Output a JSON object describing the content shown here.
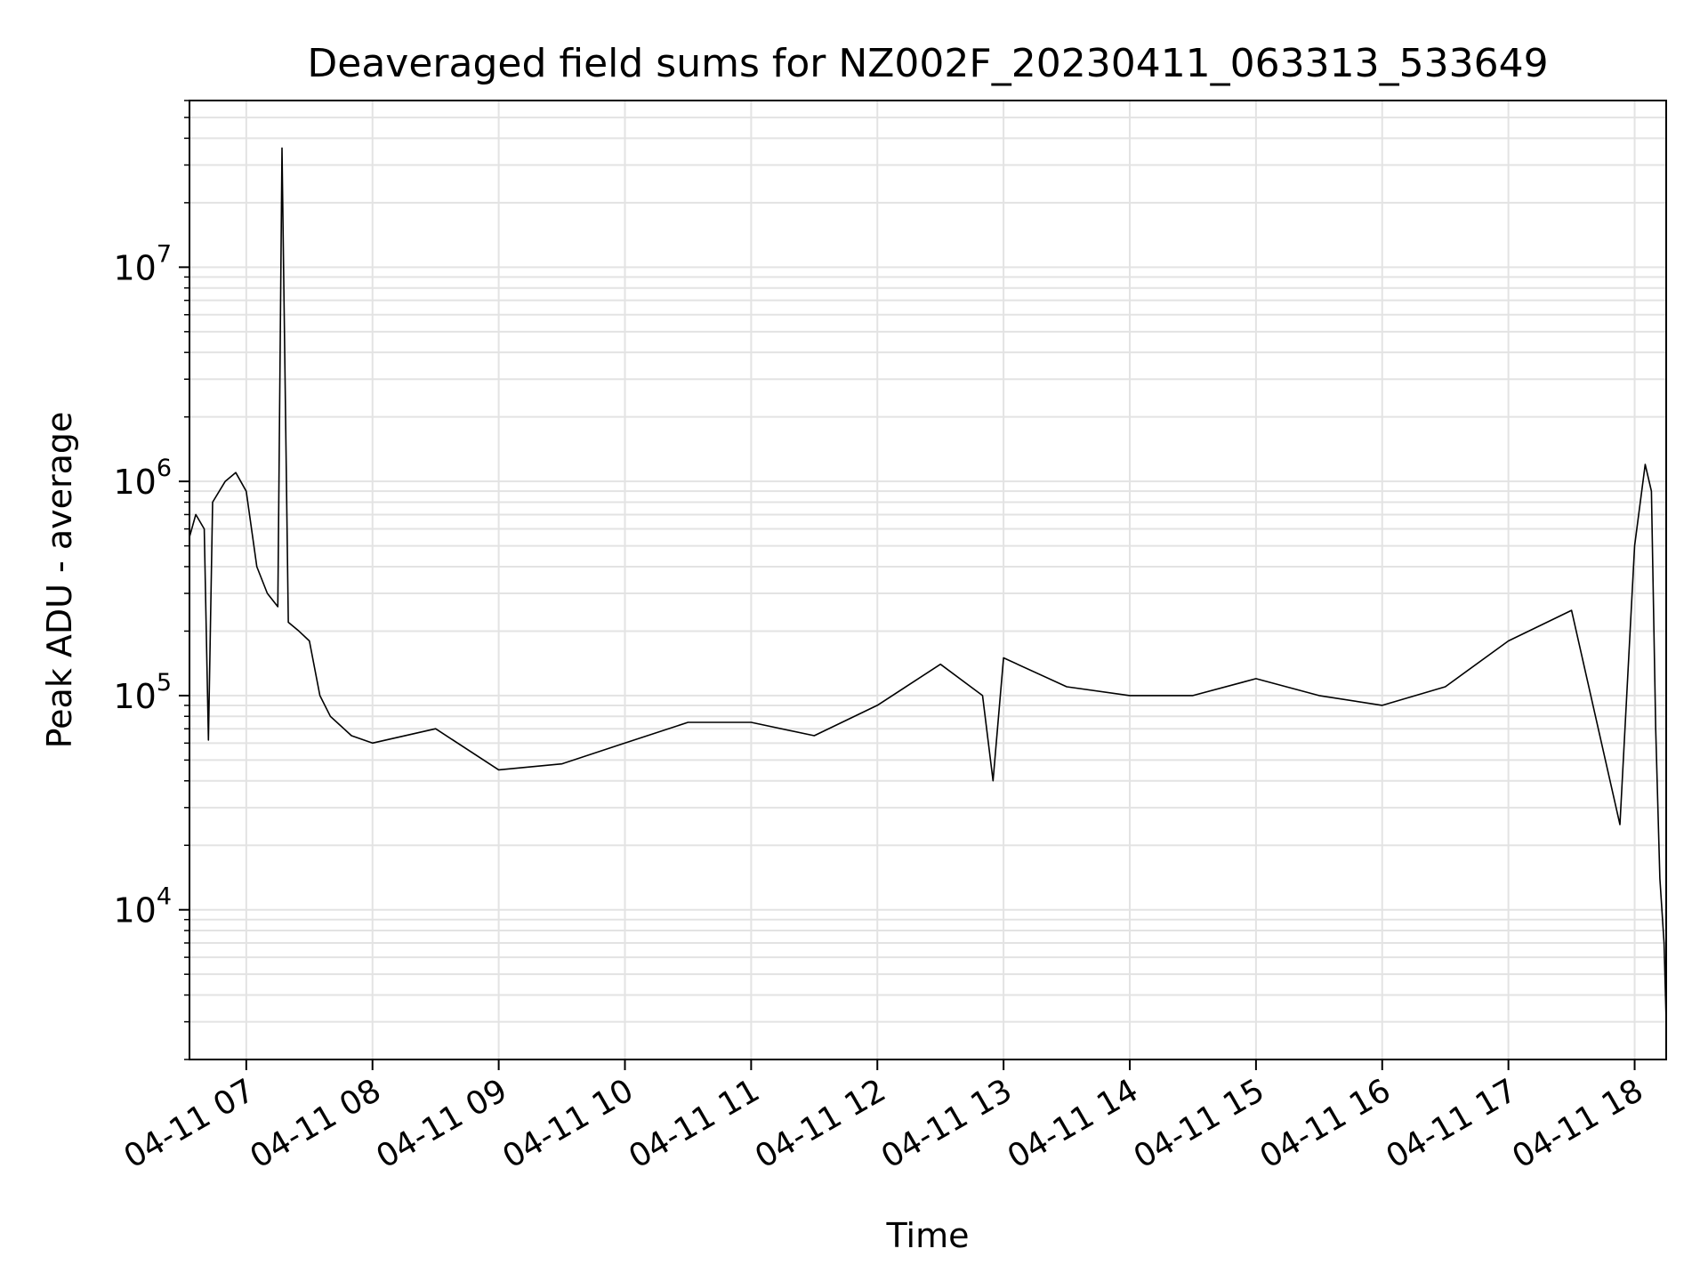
{
  "chart_data": {
    "type": "line",
    "title": "Deaveraged field sums for NZ002F_20230411_063313_533649",
    "xlabel": "Time",
    "ylabel": "Peak ADU - average",
    "x_axis": {
      "type": "time",
      "range": [
        "2023-04-11 06:33",
        "2023-04-11 18:15"
      ],
      "tick_values": [
        "2023-04-11 07:00",
        "2023-04-11 08:00",
        "2023-04-11 09:00",
        "2023-04-11 10:00",
        "2023-04-11 11:00",
        "2023-04-11 12:00",
        "2023-04-11 13:00",
        "2023-04-11 14:00",
        "2023-04-11 15:00",
        "2023-04-11 16:00",
        "2023-04-11 17:00",
        "2023-04-11 18:00"
      ],
      "tick_labels": [
        "04-11 07",
        "04-11 08",
        "04-11 09",
        "04-11 10",
        "04-11 11",
        "04-11 12",
        "04-11 13",
        "04-11 14",
        "04-11 15",
        "04-11 16",
        "04-11 17",
        "04-11 18"
      ]
    },
    "y_axis": {
      "scale": "log",
      "range": [
        2000,
        60000000
      ],
      "tick_values": [
        10000,
        100000,
        1000000,
        10000000
      ],
      "tick_base": [
        "10",
        "10",
        "10",
        "10"
      ],
      "tick_exp": [
        "4",
        "5",
        "6",
        "7"
      ]
    },
    "grid": true,
    "series": [
      {
        "color": "#000000",
        "points": [
          [
            "2023-04-11 06:33",
            550000
          ],
          [
            "2023-04-11 06:36",
            700000
          ],
          [
            "2023-04-11 06:40",
            600000
          ],
          [
            "2023-04-11 06:42",
            62000
          ],
          [
            "2023-04-11 06:44",
            800000
          ],
          [
            "2023-04-11 06:50",
            1000000
          ],
          [
            "2023-04-11 06:55",
            1100000
          ],
          [
            "2023-04-11 07:00",
            900000
          ],
          [
            "2023-04-11 07:05",
            400000
          ],
          [
            "2023-04-11 07:10",
            300000
          ],
          [
            "2023-04-11 07:15",
            260000
          ],
          [
            "2023-04-11 07:17",
            36000000
          ],
          [
            "2023-04-11 07:20",
            220000
          ],
          [
            "2023-04-11 07:25",
            200000
          ],
          [
            "2023-04-11 07:30",
            180000
          ],
          [
            "2023-04-11 07:35",
            100000
          ],
          [
            "2023-04-11 07:40",
            80000
          ],
          [
            "2023-04-11 07:50",
            65000
          ],
          [
            "2023-04-11 08:00",
            60000
          ],
          [
            "2023-04-11 08:30",
            70000
          ],
          [
            "2023-04-11 09:00",
            45000
          ],
          [
            "2023-04-11 09:30",
            48000
          ],
          [
            "2023-04-11 10:00",
            60000
          ],
          [
            "2023-04-11 10:30",
            75000
          ],
          [
            "2023-04-11 11:00",
            75000
          ],
          [
            "2023-04-11 11:30",
            65000
          ],
          [
            "2023-04-11 12:00",
            90000
          ],
          [
            "2023-04-11 12:30",
            140000
          ],
          [
            "2023-04-11 12:50",
            100000
          ],
          [
            "2023-04-11 12:55",
            40000
          ],
          [
            "2023-04-11 13:00",
            150000
          ],
          [
            "2023-04-11 13:30",
            110000
          ],
          [
            "2023-04-11 14:00",
            100000
          ],
          [
            "2023-04-11 14:30",
            100000
          ],
          [
            "2023-04-11 15:00",
            120000
          ],
          [
            "2023-04-11 15:30",
            100000
          ],
          [
            "2023-04-11 16:00",
            90000
          ],
          [
            "2023-04-11 16:30",
            110000
          ],
          [
            "2023-04-11 17:00",
            180000
          ],
          [
            "2023-04-11 17:30",
            250000
          ],
          [
            "2023-04-11 17:53",
            25000
          ],
          [
            "2023-04-11 18:00",
            500000
          ],
          [
            "2023-04-11 18:05",
            1200000
          ],
          [
            "2023-04-11 18:08",
            900000
          ],
          [
            "2023-04-11 18:10",
            70000
          ],
          [
            "2023-04-11 18:12",
            14000
          ],
          [
            "2023-04-11 18:14",
            7000
          ],
          [
            "2023-04-11 18:15",
            3000
          ]
        ]
      }
    ]
  }
}
